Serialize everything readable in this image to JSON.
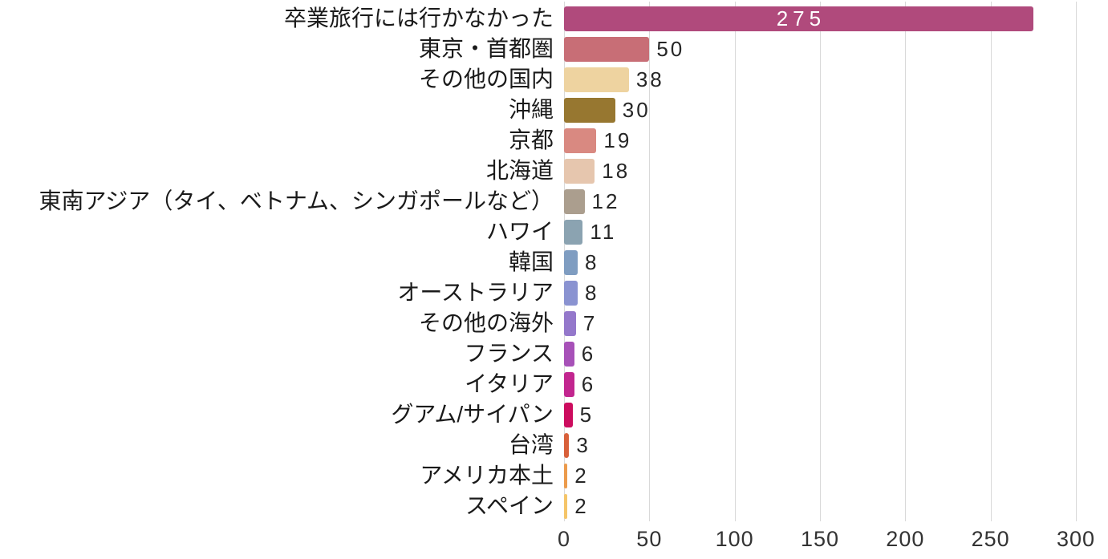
{
  "chart_data": {
    "type": "bar",
    "orientation": "horizontal",
    "title": "",
    "xlabel": "",
    "ylabel": "",
    "categories": [
      "卒業旅行には行かなかった",
      "東京・首都圏",
      "その他の国内",
      "沖縄",
      "京都",
      "北海道",
      "東南アジア（タイ、ベトナム、シンガポールなど）",
      "ハワイ",
      "韓国",
      "オーストラリア",
      "その他の海外",
      "フランス",
      "イタリア",
      "グアム/サイパン",
      "台湾",
      "アメリカ本土",
      "スペイン"
    ],
    "values": [
      275,
      50,
      38,
      30,
      19,
      18,
      12,
      11,
      8,
      8,
      7,
      6,
      6,
      5,
      3,
      2,
      2
    ],
    "bar_colors": [
      "#b04a7c",
      "#c86e76",
      "#eed3a0",
      "#977730",
      "#d98981",
      "#e6c6ae",
      "#ab9e8e",
      "#8ba3b1",
      "#7f9dc1",
      "#8a93d1",
      "#9478cb",
      "#a751b8",
      "#c2268f",
      "#cc0c5e",
      "#d8603a",
      "#ec9b4c",
      "#f5c569"
    ],
    "xlim": [
      0,
      300
    ],
    "x_ticks": [
      0,
      50,
      100,
      150,
      200,
      250,
      300
    ],
    "grid": true,
    "legend": "none",
    "value_labels": true,
    "inside_label_threshold": 100
  },
  "styles": {
    "background": "#ffffff",
    "grid_color": "#d9d9d9",
    "category_label_color": "#1a1a1a",
    "value_label_color": "#262626",
    "value_label_inside_color": "#ffffff",
    "tick_label_color": "#333333"
  }
}
